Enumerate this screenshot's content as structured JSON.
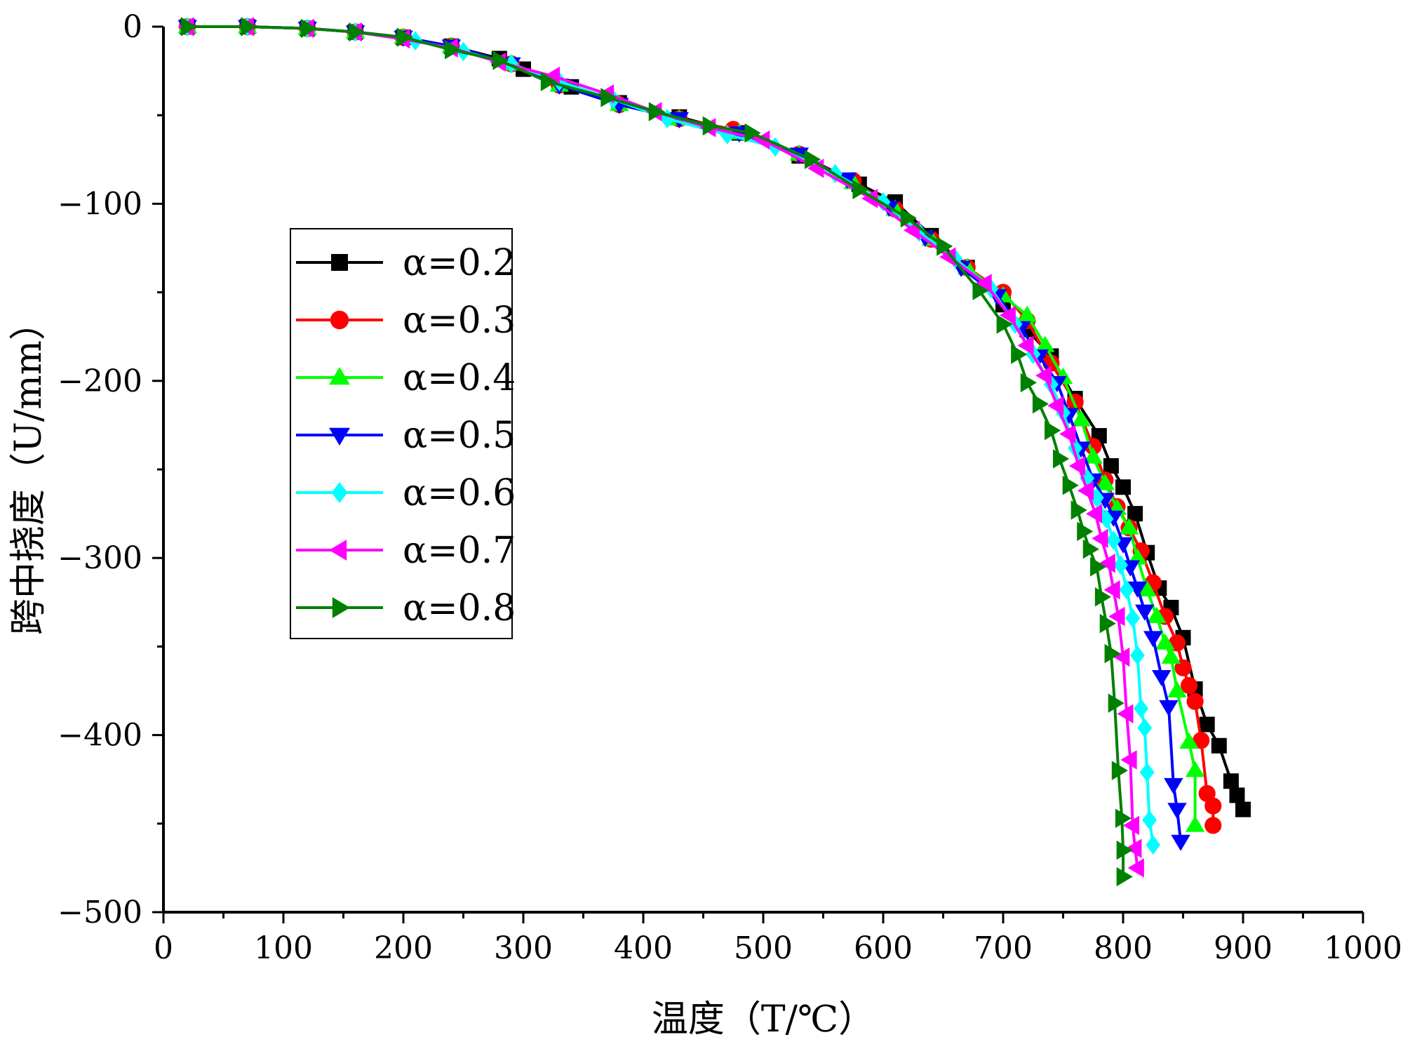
{
  "chart_data": {
    "type": "line",
    "title": "",
    "xlabel": "温度（T/℃）",
    "ylabel": "跨中挠度（U/mm）",
    "xlim": [
      0,
      1000
    ],
    "ylim": [
      -500,
      0
    ],
    "x_ticks": [
      "0",
      "100",
      "200",
      "300",
      "400",
      "500",
      "600",
      "700",
      "800",
      "900",
      "1000"
    ],
    "y_ticks": [
      "0",
      "-100",
      "-200",
      "-300",
      "-400",
      "-500"
    ],
    "grid": false,
    "legend_position": "left",
    "series": [
      {
        "name": "α=0.2",
        "color": "#000000",
        "marker": "square",
        "points": [
          [
            20,
            0
          ],
          [
            70,
            0
          ],
          [
            120,
            -1
          ],
          [
            160,
            -3
          ],
          [
            200,
            -6
          ],
          [
            240,
            -11
          ],
          [
            280,
            -18
          ],
          [
            300,
            -24
          ],
          [
            340,
            -34
          ],
          [
            380,
            -43
          ],
          [
            430,
            -51
          ],
          [
            480,
            -60
          ],
          [
            530,
            -73
          ],
          [
            580,
            -89
          ],
          [
            610,
            -99
          ],
          [
            640,
            -118
          ],
          [
            670,
            -136
          ],
          [
            700,
            -157
          ],
          [
            720,
            -171
          ],
          [
            740,
            -186
          ],
          [
            760,
            -210
          ],
          [
            780,
            -231
          ],
          [
            790,
            -248
          ],
          [
            800,
            -260
          ],
          [
            810,
            -275
          ],
          [
            820,
            -297
          ],
          [
            830,
            -317
          ],
          [
            840,
            -328
          ],
          [
            850,
            -345
          ],
          [
            860,
            -374
          ],
          [
            870,
            -394
          ],
          [
            880,
            -406
          ],
          [
            890,
            -426
          ],
          [
            895,
            -434
          ],
          [
            900,
            -442
          ]
        ]
      },
      {
        "name": "α=0.3",
        "color": "#ff0000",
        "marker": "circle",
        "points": [
          [
            20,
            0
          ],
          [
            70,
            0
          ],
          [
            120,
            -1
          ],
          [
            160,
            -3
          ],
          [
            200,
            -6
          ],
          [
            240,
            -11
          ],
          [
            290,
            -21
          ],
          [
            330,
            -33
          ],
          [
            380,
            -44
          ],
          [
            430,
            -52
          ],
          [
            475,
            -58
          ],
          [
            530,
            -72
          ],
          [
            575,
            -87
          ],
          [
            610,
            -103
          ],
          [
            640,
            -120
          ],
          [
            670,
            -136
          ],
          [
            700,
            -150
          ],
          [
            720,
            -166
          ],
          [
            740,
            -190
          ],
          [
            760,
            -212
          ],
          [
            775,
            -237
          ],
          [
            785,
            -256
          ],
          [
            795,
            -271
          ],
          [
            805,
            -283
          ],
          [
            815,
            -296
          ],
          [
            825,
            -314
          ],
          [
            835,
            -333
          ],
          [
            845,
            -348
          ],
          [
            850,
            -362
          ],
          [
            855,
            -372
          ],
          [
            860,
            -381
          ],
          [
            865,
            -403
          ],
          [
            870,
            -433
          ],
          [
            875,
            -440
          ],
          [
            875,
            -451
          ]
        ]
      },
      {
        "name": "α=0.4",
        "color": "#00ff00",
        "marker": "triangle-up",
        "points": [
          [
            20,
            0
          ],
          [
            70,
            0
          ],
          [
            120,
            -1
          ],
          [
            160,
            -3
          ],
          [
            200,
            -6
          ],
          [
            240,
            -11
          ],
          [
            290,
            -21
          ],
          [
            330,
            -33
          ],
          [
            380,
            -44
          ],
          [
            430,
            -52
          ],
          [
            480,
            -60
          ],
          [
            530,
            -72
          ],
          [
            575,
            -88
          ],
          [
            610,
            -103
          ],
          [
            640,
            -120
          ],
          [
            670,
            -136
          ],
          [
            700,
            -152
          ],
          [
            720,
            -163
          ],
          [
            735,
            -180
          ],
          [
            750,
            -198
          ],
          [
            765,
            -222
          ],
          [
            775,
            -243
          ],
          [
            785,
            -258
          ],
          [
            795,
            -272
          ],
          [
            805,
            -283
          ],
          [
            812,
            -300
          ],
          [
            820,
            -318
          ],
          [
            828,
            -333
          ],
          [
            835,
            -348
          ],
          [
            840,
            -356
          ],
          [
            845,
            -375
          ],
          [
            855,
            -404
          ],
          [
            860,
            -420
          ],
          [
            860,
            -451
          ]
        ]
      },
      {
        "name": "α=0.5",
        "color": "#0000ff",
        "marker": "triangle-down",
        "points": [
          [
            20,
            0
          ],
          [
            70,
            0
          ],
          [
            120,
            -1
          ],
          [
            160,
            -3
          ],
          [
            200,
            -6
          ],
          [
            240,
            -11
          ],
          [
            290,
            -21
          ],
          [
            330,
            -33
          ],
          [
            380,
            -44
          ],
          [
            430,
            -52
          ],
          [
            480,
            -60
          ],
          [
            530,
            -72
          ],
          [
            570,
            -86
          ],
          [
            605,
            -102
          ],
          [
            635,
            -119
          ],
          [
            665,
            -136
          ],
          [
            695,
            -152
          ],
          [
            715,
            -170
          ],
          [
            730,
            -186
          ],
          [
            745,
            -201
          ],
          [
            755,
            -219
          ],
          [
            765,
            -238
          ],
          [
            775,
            -256
          ],
          [
            785,
            -267
          ],
          [
            792,
            -277
          ],
          [
            800,
            -292
          ],
          [
            806,
            -305
          ],
          [
            812,
            -317
          ],
          [
            818,
            -330
          ],
          [
            825,
            -345
          ],
          [
            832,
            -367
          ],
          [
            838,
            -384
          ],
          [
            842,
            -428
          ],
          [
            845,
            -442
          ],
          [
            848,
            -460
          ]
        ]
      },
      {
        "name": "α=0.6",
        "color": "#00ffff",
        "marker": "diamond",
        "points": [
          [
            20,
            0
          ],
          [
            70,
            0
          ],
          [
            120,
            -1
          ],
          [
            160,
            -3
          ],
          [
            210,
            -8
          ],
          [
            250,
            -14
          ],
          [
            290,
            -21
          ],
          [
            330,
            -31
          ],
          [
            375,
            -41
          ],
          [
            420,
            -52
          ],
          [
            470,
            -61
          ],
          [
            510,
            -68
          ],
          [
            560,
            -83
          ],
          [
            600,
            -99
          ],
          [
            630,
            -116
          ],
          [
            660,
            -131
          ],
          [
            690,
            -148
          ],
          [
            710,
            -168
          ],
          [
            725,
            -185
          ],
          [
            740,
            -202
          ],
          [
            750,
            -218
          ],
          [
            760,
            -238
          ],
          [
            770,
            -255
          ],
          [
            778,
            -266
          ],
          [
            786,
            -278
          ],
          [
            792,
            -290
          ],
          [
            798,
            -304
          ],
          [
            803,
            -318
          ],
          [
            808,
            -334
          ],
          [
            812,
            -355
          ],
          [
            815,
            -385
          ],
          [
            818,
            -396
          ],
          [
            820,
            -421
          ],
          [
            822,
            -448
          ],
          [
            825,
            -462
          ]
        ]
      },
      {
        "name": "α=0.7",
        "color": "#ff00ff",
        "marker": "triangle-left",
        "points": [
          [
            20,
            0
          ],
          [
            70,
            0
          ],
          [
            120,
            -1
          ],
          [
            160,
            -3
          ],
          [
            200,
            -7
          ],
          [
            240,
            -12
          ],
          [
            280,
            -20
          ],
          [
            325,
            -28
          ],
          [
            370,
            -38
          ],
          [
            410,
            -48
          ],
          [
            455,
            -57
          ],
          [
            500,
            -64
          ],
          [
            545,
            -80
          ],
          [
            590,
            -97
          ],
          [
            625,
            -115
          ],
          [
            655,
            -130
          ],
          [
            685,
            -145
          ],
          [
            705,
            -163
          ],
          [
            720,
            -180
          ],
          [
            735,
            -197
          ],
          [
            745,
            -214
          ],
          [
            755,
            -230
          ],
          [
            763,
            -248
          ],
          [
            770,
            -262
          ],
          [
            777,
            -275
          ],
          [
            782,
            -289
          ],
          [
            788,
            -303
          ],
          [
            792,
            -318
          ],
          [
            796,
            -333
          ],
          [
            800,
            -356
          ],
          [
            803,
            -388
          ],
          [
            806,
            -414
          ],
          [
            808,
            -451
          ],
          [
            810,
            -464
          ],
          [
            812,
            -475
          ]
        ]
      },
      {
        "name": "α=0.8",
        "color": "#008000",
        "marker": "triangle-right",
        "points": [
          [
            20,
            0
          ],
          [
            70,
            0
          ],
          [
            120,
            -1
          ],
          [
            160,
            -3
          ],
          [
            200,
            -6
          ],
          [
            240,
            -13
          ],
          [
            280,
            -19
          ],
          [
            320,
            -31
          ],
          [
            370,
            -40
          ],
          [
            410,
            -48
          ],
          [
            455,
            -56
          ],
          [
            490,
            -60
          ],
          [
            540,
            -75
          ],
          [
            580,
            -92
          ],
          [
            620,
            -108
          ],
          [
            650,
            -124
          ],
          [
            680,
            -149
          ],
          [
            700,
            -168
          ],
          [
            712,
            -185
          ],
          [
            720,
            -201
          ],
          [
            730,
            -213
          ],
          [
            740,
            -228
          ],
          [
            747,
            -244
          ],
          [
            755,
            -259
          ],
          [
            762,
            -273
          ],
          [
            767,
            -285
          ],
          [
            772,
            -295
          ],
          [
            778,
            -305
          ],
          [
            782,
            -322
          ],
          [
            786,
            -337
          ],
          [
            790,
            -354
          ],
          [
            793,
            -382
          ],
          [
            796,
            -420
          ],
          [
            799,
            -447
          ],
          [
            800,
            -465
          ],
          [
            800,
            -480
          ]
        ]
      }
    ]
  }
}
